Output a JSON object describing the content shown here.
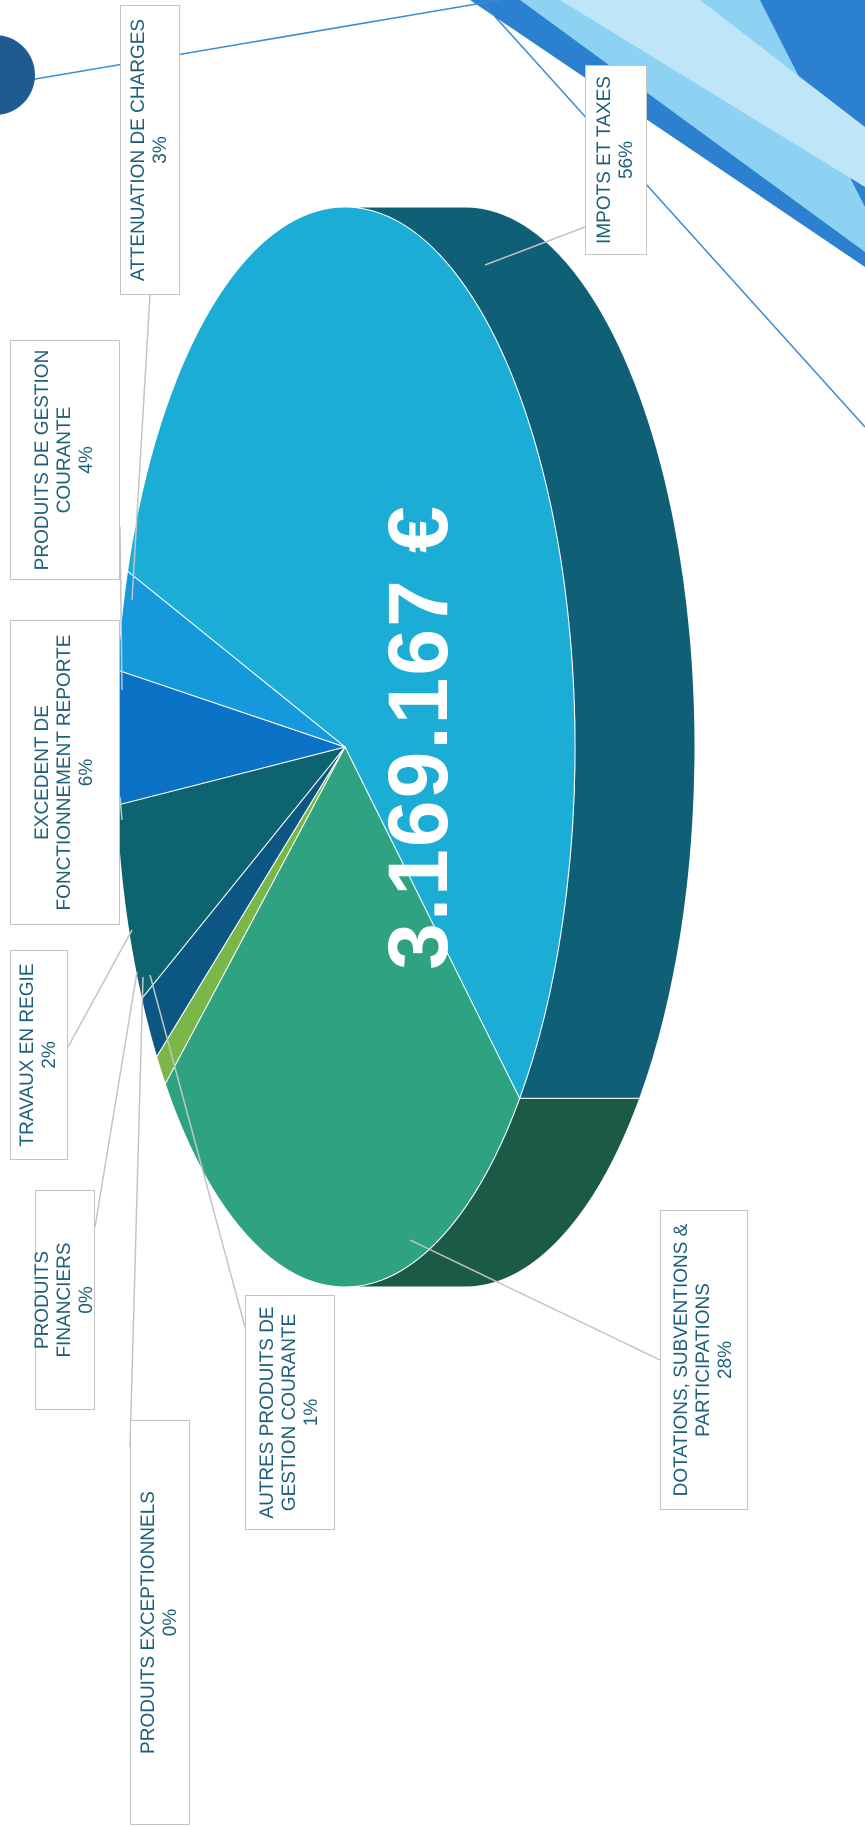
{
  "chart_data": {
    "type": "pie",
    "center_label": "3.169.167 €",
    "categories": [
      "IMPOTS ET TAXES",
      "DOTATIONS, SUBVENTIONS & PARTICIPATIONS",
      "AUTRES PRODUITS DE GESTION COURANTE",
      "PRODUITS EXCEPTIONNELS",
      "PRODUITS FINANCIERS",
      "TRAVAUX EN REGIE",
      "EXCEDENT DE FONCTIONNEMENT REPORTE",
      "PRODUITS DE GESTION COURANTE",
      "ATTENUATION DE CHARGES"
    ],
    "values": [
      56,
      28,
      1,
      0,
      0,
      2,
      6,
      4,
      3
    ],
    "value_labels": [
      "56%",
      "28%",
      "1%",
      "0%",
      "0%",
      "2%",
      "6%",
      "4%",
      "3%"
    ],
    "colors": [
      "#1badd6",
      "#2fa381",
      "#7ab648",
      "#2b9a86",
      "#1f6f8a",
      "#0b5683",
      "#0d6470",
      "#0b72c6",
      "#1598dc"
    ]
  }
}
